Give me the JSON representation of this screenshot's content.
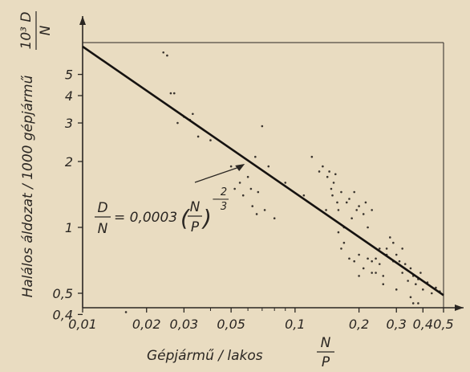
{
  "chart_data": {
    "type": "scatter",
    "title": "",
    "xlabel": "Gépjármű / lakos",
    "xlabel_fraction": {
      "numerator": "N",
      "denominator": "P"
    },
    "ylabel": "Halálos áldozat / 1000 gépjármű",
    "ylabel_fraction": {
      "numerator": "10³ D",
      "denominator": "N"
    },
    "x_scale": "log",
    "y_scale": "log",
    "xlim": [
      0.01,
      0.6
    ],
    "ylim": [
      0.4,
      7.2
    ],
    "x_ticks": [
      0.01,
      0.02,
      0.03,
      0.05,
      0.1,
      0.2,
      0.3,
      0.4,
      0.5
    ],
    "x_tick_labels": [
      "0,01",
      "0,02",
      "0,03",
      "0,05",
      "0,1",
      "0,2",
      "0,3",
      "0,4",
      "0,5"
    ],
    "y_ticks": [
      0.4,
      0.5,
      1,
      2,
      3,
      4,
      5
    ],
    "y_tick_labels": [
      "0,4",
      "0,5",
      "1",
      "2",
      "3",
      "4",
      "5"
    ],
    "grid": false,
    "legend": "none",
    "annotation": {
      "lhs_numerator": "D",
      "lhs_denominator": "N",
      "equals_coef": "= 0,0003",
      "paren_open": "(",
      "paren_numerator": "N",
      "paren_denominator": "P",
      "paren_close": ")",
      "exponent_sign": "−",
      "exponent_numerator": "2",
      "exponent_denominator": "3",
      "arrow_target": {
        "x": 0.058,
        "y": 1.95
      }
    },
    "series": [
      {
        "type": "line",
        "points": [
          [
            0.01,
            6.7
          ],
          [
            0.5,
            0.49
          ]
        ]
      },
      {
        "type": "scatter",
        "points": [
          [
            0.016,
            0.41
          ],
          [
            0.024,
            6.3
          ],
          [
            0.025,
            6.1
          ],
          [
            0.026,
            4.1
          ],
          [
            0.027,
            4.1
          ],
          [
            0.028,
            3.0
          ],
          [
            0.03,
            3.2
          ],
          [
            0.032,
            3.1
          ],
          [
            0.035,
            2.6
          ],
          [
            0.033,
            3.3
          ],
          [
            0.04,
            2.5
          ],
          [
            0.05,
            1.9
          ],
          [
            0.052,
            1.5
          ],
          [
            0.055,
            1.6
          ],
          [
            0.057,
            1.4
          ],
          [
            0.06,
            1.7
          ],
          [
            0.062,
            1.5
          ],
          [
            0.063,
            1.25
          ],
          [
            0.065,
            2.1
          ],
          [
            0.066,
            1.15
          ],
          [
            0.067,
            1.45
          ],
          [
            0.07,
            2.9
          ],
          [
            0.072,
            1.2
          ],
          [
            0.075,
            1.9
          ],
          [
            0.08,
            1.1
          ],
          [
            0.09,
            1.6
          ],
          [
            0.11,
            1.4
          ],
          [
            0.12,
            2.1
          ],
          [
            0.13,
            1.8
          ],
          [
            0.135,
            1.9
          ],
          [
            0.14,
            1.2
          ],
          [
            0.142,
            1.7
          ],
          [
            0.145,
            1.8
          ],
          [
            0.148,
            1.5
          ],
          [
            0.15,
            1.4
          ],
          [
            0.152,
            1.6
          ],
          [
            0.155,
            1.75
          ],
          [
            0.158,
            1.3
          ],
          [
            0.16,
            1.2
          ],
          [
            0.165,
            1.45
          ],
          [
            0.17,
            1.0
          ],
          [
            0.175,
            1.3
          ],
          [
            0.18,
            1.35
          ],
          [
            0.185,
            1.1
          ],
          [
            0.19,
            1.45
          ],
          [
            0.195,
            1.2
          ],
          [
            0.2,
            1.25
          ],
          [
            0.21,
            1.15
          ],
          [
            0.215,
            1.3
          ],
          [
            0.22,
            1.0
          ],
          [
            0.23,
            1.2
          ],
          [
            0.16,
            0.95
          ],
          [
            0.165,
            0.8
          ],
          [
            0.17,
            0.85
          ],
          [
            0.18,
            0.72
          ],
          [
            0.19,
            0.7
          ],
          [
            0.2,
            0.75
          ],
          [
            0.21,
            0.65
          ],
          [
            0.22,
            0.72
          ],
          [
            0.23,
            0.7
          ],
          [
            0.24,
            0.62
          ],
          [
            0.25,
            0.68
          ],
          [
            0.26,
            0.6
          ],
          [
            0.27,
            0.8
          ],
          [
            0.28,
            0.9
          ],
          [
            0.29,
            0.85
          ],
          [
            0.3,
            0.75
          ],
          [
            0.31,
            0.7
          ],
          [
            0.32,
            0.62
          ],
          [
            0.33,
            0.68
          ],
          [
            0.34,
            0.57
          ],
          [
            0.35,
            0.65
          ],
          [
            0.36,
            0.6
          ],
          [
            0.37,
            0.55
          ],
          [
            0.38,
            0.58
          ],
          [
            0.39,
            0.62
          ],
          [
            0.4,
            0.52
          ],
          [
            0.42,
            0.56
          ],
          [
            0.44,
            0.5
          ],
          [
            0.46,
            0.53
          ],
          [
            0.48,
            0.51
          ],
          [
            0.35,
            0.48
          ],
          [
            0.3,
            0.52
          ],
          [
            0.26,
            0.55
          ],
          [
            0.36,
            0.45
          ],
          [
            0.38,
            0.45
          ],
          [
            0.24,
            0.72
          ],
          [
            0.27,
            0.75
          ],
          [
            0.29,
            0.7
          ],
          [
            0.32,
            0.8
          ],
          [
            0.2,
            0.6
          ],
          [
            0.25,
            0.8
          ],
          [
            0.23,
            0.62
          ]
        ]
      }
    ]
  }
}
